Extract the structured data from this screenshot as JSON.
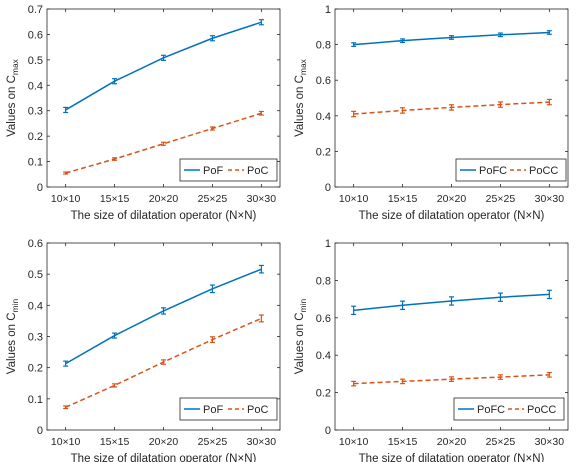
{
  "colors": {
    "series1": "#0072BD",
    "series2": "#D95319",
    "axis": "#262626"
  },
  "chart_data": [
    {
      "type": "line",
      "categories": [
        "10×10",
        "15×15",
        "20×20",
        "25×25",
        "30×30"
      ],
      "xlabel": "The size of dilatation operator (N×N)",
      "ylabel": {
        "main": "Values on C",
        "sub": "max"
      },
      "ylim": [
        0,
        0.7
      ],
      "yticks": [
        "0",
        "0.1",
        "0.2",
        "0.3",
        "0.4",
        "0.5",
        "0.6",
        "0.7"
      ],
      "grid": false,
      "legend_position": "bottom-right",
      "series": [
        {
          "name": "PoF",
          "style": "solid",
          "values": [
            0.303,
            0.416,
            0.508,
            0.585,
            0.648
          ],
          "errors": [
            0.01,
            0.01,
            0.01,
            0.01,
            0.01
          ]
        },
        {
          "name": "PoC",
          "style": "dashed",
          "values": [
            0.055,
            0.11,
            0.17,
            0.23,
            0.29
          ],
          "errors": [
            0.004,
            0.005,
            0.006,
            0.006,
            0.007
          ]
        }
      ]
    },
    {
      "type": "line",
      "categories": [
        "10×10",
        "15×15",
        "20×20",
        "25×25",
        "30×30"
      ],
      "xlabel": "The size of dilatation operator (N×N)",
      "ylabel": {
        "main": "Values on C",
        "sub": "max"
      },
      "ylim": [
        0,
        1
      ],
      "yticks": [
        "0",
        "0.2",
        "0.4",
        "0.6",
        "0.8",
        "1"
      ],
      "grid": false,
      "legend_position": "bottom-right",
      "series": [
        {
          "name": "PoFC",
          "style": "solid",
          "values": [
            0.8,
            0.822,
            0.84,
            0.855,
            0.868
          ],
          "errors": [
            0.01,
            0.01,
            0.01,
            0.01,
            0.01
          ]
        },
        {
          "name": "PoCC",
          "style": "dashed",
          "values": [
            0.41,
            0.43,
            0.447,
            0.463,
            0.477
          ],
          "errors": [
            0.015,
            0.015,
            0.015,
            0.015,
            0.015
          ]
        }
      ]
    },
    {
      "type": "line",
      "categories": [
        "10×10",
        "15×15",
        "20×20",
        "25×25",
        "30×30"
      ],
      "xlabel": "The size of dilatation operator (N×N)",
      "ylabel": {
        "main": "Values on C",
        "sub": "min"
      },
      "ylim": [
        0,
        0.6
      ],
      "yticks": [
        "0",
        "0.1",
        "0.2",
        "0.3",
        "0.4",
        "0.5",
        "0.6"
      ],
      "grid": false,
      "legend_position": "bottom-right",
      "series": [
        {
          "name": "PoF",
          "style": "solid",
          "values": [
            0.213,
            0.303,
            0.382,
            0.453,
            0.516
          ],
          "errors": [
            0.008,
            0.008,
            0.01,
            0.012,
            0.012
          ]
        },
        {
          "name": "PoC",
          "style": "dashed",
          "values": [
            0.073,
            0.143,
            0.218,
            0.29,
            0.358
          ],
          "errors": [
            0.004,
            0.005,
            0.007,
            0.009,
            0.011
          ]
        }
      ]
    },
    {
      "type": "line",
      "categories": [
        "10×10",
        "15×15",
        "20×20",
        "25×25",
        "30×30"
      ],
      "xlabel": "The size of dilatation operator (N×N)",
      "ylabel": {
        "main": "Values on C",
        "sub": "min"
      },
      "ylim": [
        0,
        1
      ],
      "yticks": [
        "0",
        "0.2",
        "0.4",
        "0.6",
        "0.8",
        "1"
      ],
      "grid": false,
      "legend_position": "bottom-right",
      "series": [
        {
          "name": "PoFC",
          "style": "solid",
          "values": [
            0.64,
            0.667,
            0.69,
            0.71,
            0.725
          ],
          "errors": [
            0.022,
            0.022,
            0.022,
            0.022,
            0.022
          ]
        },
        {
          "name": "PoCC",
          "style": "dashed",
          "values": [
            0.248,
            0.26,
            0.272,
            0.283,
            0.295
          ],
          "errors": [
            0.012,
            0.012,
            0.012,
            0.012,
            0.012
          ]
        }
      ]
    }
  ]
}
